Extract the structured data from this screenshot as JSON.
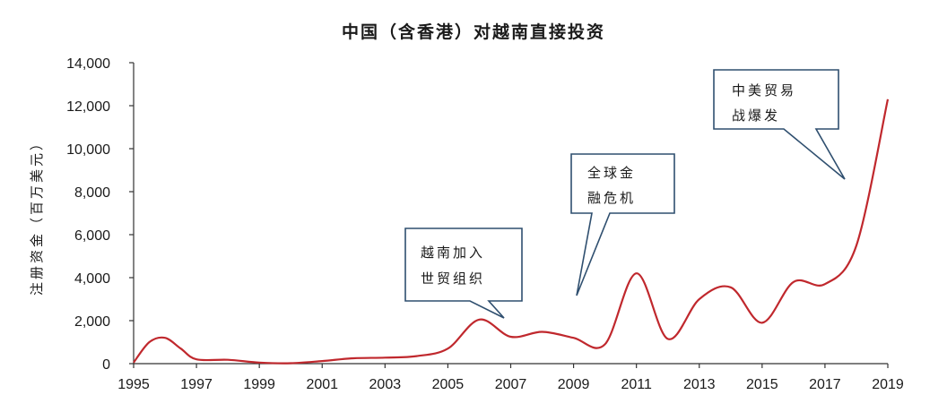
{
  "chart_data": {
    "type": "line",
    "title": "中国（含香港）对越南直接投资",
    "ylabel": "注册资金（百万美元）",
    "xlabel": "",
    "x": [
      1995,
      1995.5,
      1996,
      1996.5,
      1997,
      1998,
      1999,
      2000,
      2001,
      2002,
      2003,
      2004,
      2005,
      2006,
      2007,
      2008,
      2009,
      2010,
      2011,
      2012,
      2013,
      2014,
      2015,
      2016,
      2017,
      2018,
      2019
    ],
    "values": [
      50,
      1000,
      1200,
      700,
      200,
      180,
      50,
      20,
      120,
      250,
      280,
      350,
      700,
      2050,
      1250,
      1480,
      1200,
      900,
      4200,
      1150,
      3000,
      3550,
      1900,
      3800,
      3700,
      5500,
      12300
    ],
    "xlim": [
      1995,
      2019
    ],
    "ylim": [
      0,
      14000
    ],
    "x_ticks": [
      "1995",
      "1997",
      "1999",
      "2001",
      "2003",
      "2005",
      "2007",
      "2009",
      "2011",
      "2013",
      "2015",
      "2017",
      "2019"
    ],
    "y_ticks": [
      "0",
      "2,000",
      "4,000",
      "6,000",
      "8,000",
      "10,000",
      "12,000",
      "14,000"
    ],
    "grid": false,
    "line_color": "#c0282d",
    "annotations": [
      {
        "lines": [
          "越南加入",
          "世贸组织"
        ]
      },
      {
        "lines": [
          "全球金",
          "融危机"
        ]
      },
      {
        "lines": [
          "中美贸易",
          "战爆发"
        ]
      }
    ]
  }
}
